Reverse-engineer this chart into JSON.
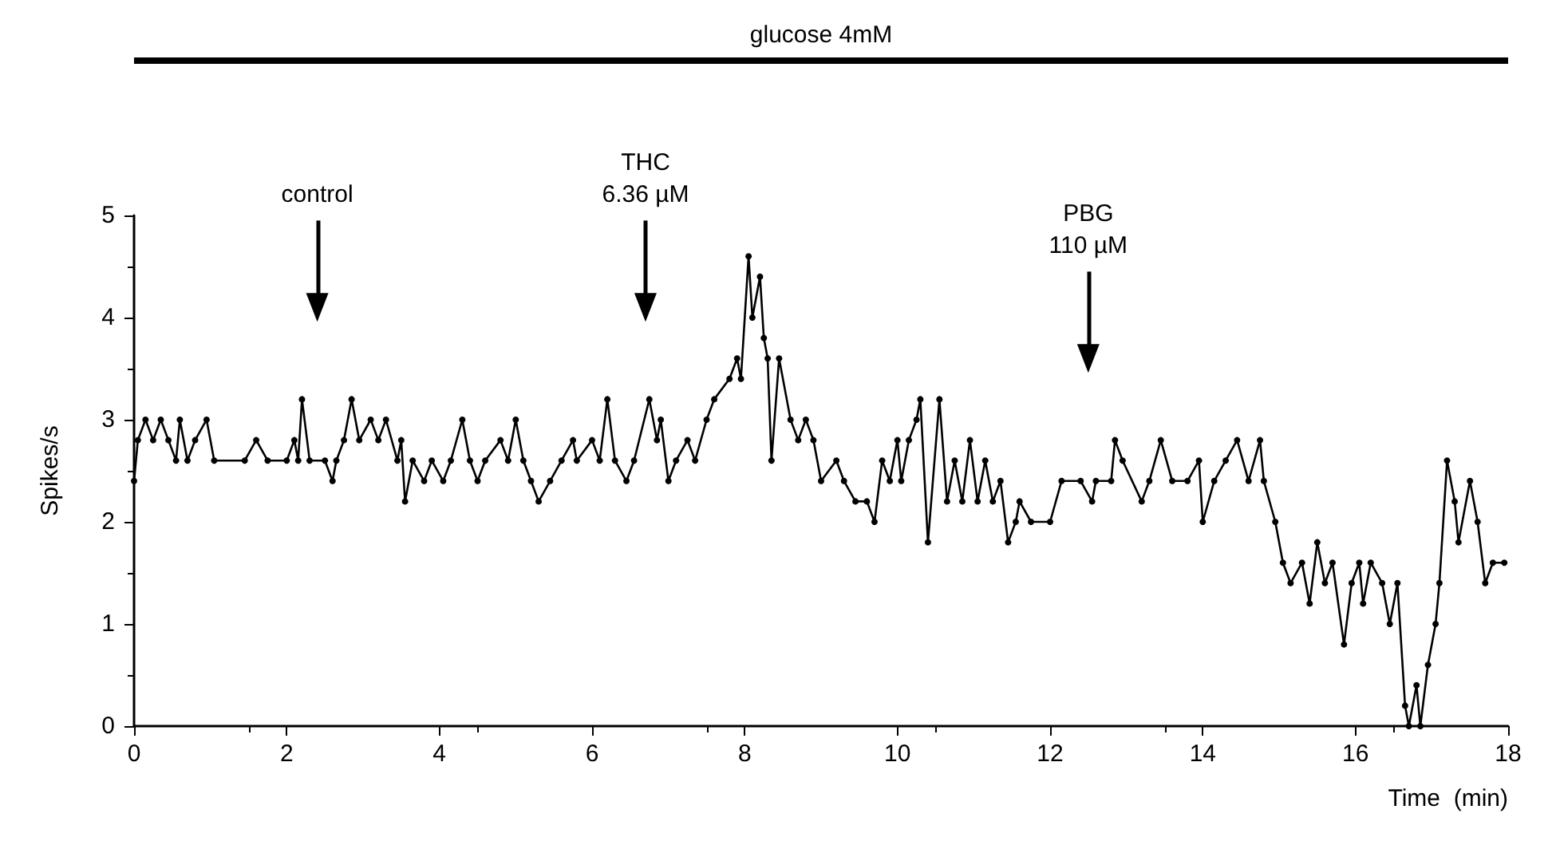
{
  "chart_data": {
    "type": "line",
    "xlabel": "Time  (min)",
    "ylabel": "Spikes/s",
    "xlim": [
      0,
      18
    ],
    "xticks": [
      0,
      2,
      4,
      6,
      8,
      10,
      12,
      14,
      16,
      18
    ],
    "ylim": [
      0,
      5
    ],
    "yticks": [
      0,
      1,
      2,
      3,
      4,
      5
    ],
    "grid": false,
    "marker": "circle",
    "line_style": "solid",
    "annotations": [
      "glucose 4mM",
      {
        "text": "control",
        "x": 2.4,
        "y": 4.1
      },
      {
        "text": "THC\n6.36 µM",
        "x": 6.7,
        "y": 4.1
      },
      {
        "text": "PBG\n110 µM",
        "x": 12.5,
        "y": 3.6
      }
    ],
    "series": [
      {
        "color": "#000000",
        "x": [
          0,
          0.05,
          0.15,
          0.25,
          0.35,
          0.45,
          0.55,
          0.6,
          0.7,
          0.8,
          0.95,
          1.05,
          1.45,
          1.6,
          1.75,
          2.0,
          2.1,
          2.15,
          2.2,
          2.3,
          2.5,
          2.6,
          2.65,
          2.75,
          2.85,
          2.95,
          3.1,
          3.2,
          3.3,
          3.45,
          3.5,
          3.55,
          3.65,
          3.8,
          3.9,
          4.05,
          4.15,
          4.3,
          4.4,
          4.5,
          4.6,
          4.8,
          4.9,
          5.0,
          5.1,
          5.2,
          5.3,
          5.45,
          5.6,
          5.75,
          5.8,
          6.0,
          6.1,
          6.2,
          6.3,
          6.45,
          6.55,
          6.75,
          6.85,
          6.9,
          7.0,
          7.1,
          7.25,
          7.35,
          7.5,
          7.6,
          7.8,
          7.9,
          7.95,
          8.05,
          8.1,
          8.2,
          8.25,
          8.3,
          8.35,
          8.45,
          8.6,
          8.7,
          8.8,
          8.9,
          9.0,
          9.2,
          9.3,
          9.45,
          9.6,
          9.7,
          9.8,
          9.9,
          10.0,
          10.05,
          10.15,
          10.25,
          10.3,
          10.4,
          10.55,
          10.65,
          10.75,
          10.85,
          10.95,
          11.05,
          11.15,
          11.25,
          11.35,
          11.45,
          11.55,
          11.6,
          11.75,
          12.0,
          12.15,
          12.4,
          12.55,
          12.6,
          12.8,
          12.85,
          12.95,
          13.2,
          13.3,
          13.45,
          13.6,
          13.8,
          13.95,
          14.0,
          14.15,
          14.3,
          14.45,
          14.6,
          14.75,
          14.8,
          14.95,
          15.05,
          15.15,
          15.3,
          15.4,
          15.5,
          15.6,
          15.7,
          15.85,
          15.95,
          16.05,
          16.1,
          16.2,
          16.35,
          16.45,
          16.55,
          16.65,
          16.7,
          16.8,
          16.85,
          16.95,
          17.05,
          17.1,
          17.2,
          17.3,
          17.35,
          17.5,
          17.6,
          17.7,
          17.8,
          17.95
        ],
        "values": [
          2.4,
          2.8,
          3.0,
          2.8,
          3.0,
          2.8,
          2.6,
          3.0,
          2.6,
          2.8,
          3.0,
          2.6,
          2.6,
          2.8,
          2.6,
          2.6,
          2.8,
          2.6,
          3.2,
          2.6,
          2.6,
          2.4,
          2.6,
          2.8,
          3.2,
          2.8,
          3.0,
          2.8,
          3.0,
          2.6,
          2.8,
          2.2,
          2.6,
          2.4,
          2.6,
          2.4,
          2.6,
          3.0,
          2.6,
          2.4,
          2.6,
          2.8,
          2.6,
          3.0,
          2.6,
          2.4,
          2.2,
          2.4,
          2.6,
          2.8,
          2.6,
          2.8,
          2.6,
          3.2,
          2.6,
          2.4,
          2.6,
          3.2,
          2.8,
          3.0,
          2.4,
          2.6,
          2.8,
          2.6,
          3.0,
          3.2,
          3.4,
          3.6,
          3.4,
          4.6,
          4.0,
          4.4,
          3.8,
          3.6,
          2.6,
          3.6,
          3.0,
          2.8,
          3.0,
          2.8,
          2.4,
          2.6,
          2.4,
          2.2,
          2.2,
          2.0,
          2.6,
          2.4,
          2.8,
          2.4,
          2.8,
          3.0,
          3.2,
          1.8,
          3.2,
          2.2,
          2.6,
          2.2,
          2.8,
          2.2,
          2.6,
          2.2,
          2.4,
          1.8,
          2.0,
          2.2,
          2.0,
          2.0,
          2.4,
          2.4,
          2.2,
          2.4,
          2.4,
          2.8,
          2.6,
          2.2,
          2.4,
          2.8,
          2.4,
          2.4,
          2.6,
          2.0,
          2.4,
          2.6,
          2.8,
          2.4,
          2.8,
          2.4,
          2.0,
          1.6,
          1.4,
          1.6,
          1.2,
          1.8,
          1.4,
          1.6,
          0.8,
          1.4,
          1.6,
          1.2,
          1.6,
          1.4,
          1.0,
          1.4,
          0.2,
          0,
          0.4,
          0,
          0.6,
          1.0,
          1.4,
          2.6,
          2.2,
          1.8,
          2.4,
          2.0,
          1.4,
          1.6,
          1.6
        ]
      }
    ]
  }
}
